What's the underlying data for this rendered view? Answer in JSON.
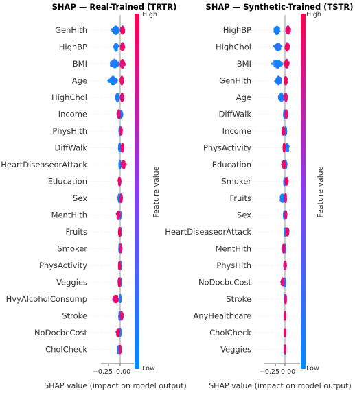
{
  "chart_data": [
    {
      "type": "beeswarm",
      "title": "SHAP — Real-Trained (TRTR)",
      "xlabel": "SHAP value (impact on model output)",
      "xticks": [
        -0.25,
        0.0
      ],
      "xtick_labels": [
        "−0.25",
        "0.00"
      ],
      "xlim": [
        -0.36,
        0.14
      ],
      "colorbar": {
        "label": "Feature value",
        "high": "High",
        "low": "Low"
      },
      "features": [
        {
          "name": "GenHlth",
          "low_range": [
            -0.18,
            -0.01
          ],
          "high_range": [
            0.0,
            0.1
          ]
        },
        {
          "name": "HighBP",
          "low_range": [
            -0.14,
            -0.03
          ],
          "high_range": [
            0.0,
            0.1
          ]
        },
        {
          "name": "BMI",
          "low_range": [
            -0.24,
            0.0
          ],
          "high_range": [
            -0.02,
            0.11
          ]
        },
        {
          "name": "Age",
          "low_range": [
            -0.27,
            -0.02
          ],
          "high_range": [
            0.0,
            0.07
          ]
        },
        {
          "name": "HighChol",
          "low_range": [
            -0.1,
            -0.02
          ],
          "high_range": [
            0.0,
            0.08
          ]
        },
        {
          "name": "Income",
          "low_range": [
            -0.01,
            0.05
          ],
          "high_range": [
            -0.06,
            0.0
          ]
        },
        {
          "name": "PhysHlth",
          "low_range": [
            -0.02,
            0.01
          ],
          "high_range": [
            0.0,
            0.04
          ]
        },
        {
          "name": "DiffWalk",
          "low_range": [
            -0.03,
            0.01
          ],
          "high_range": [
            0.02,
            0.07
          ]
        },
        {
          "name": "HeartDiseaseorAttack",
          "low_range": [
            -0.02,
            0.01
          ],
          "high_range": [
            0.01,
            0.13
          ]
        },
        {
          "name": "Education",
          "low_range": [
            -0.03,
            0.01
          ],
          "high_range": [
            -0.04,
            0.01
          ]
        },
        {
          "name": "Sex",
          "low_range": [
            -0.04,
            0.0
          ],
          "high_range": [
            0.0,
            0.04
          ]
        },
        {
          "name": "MentHlth",
          "low_range": [
            -0.01,
            0.01
          ],
          "high_range": [
            -0.08,
            0.0
          ]
        },
        {
          "name": "Fruits",
          "low_range": [
            -0.01,
            0.02
          ],
          "high_range": [
            -0.03,
            0.01
          ]
        },
        {
          "name": "Smoker",
          "low_range": [
            -0.02,
            0.0
          ],
          "high_range": [
            0.0,
            0.03
          ]
        },
        {
          "name": "PhysActivity",
          "low_range": [
            -0.01,
            0.02
          ],
          "high_range": [
            -0.03,
            0.0
          ]
        },
        {
          "name": "Veggies",
          "low_range": [
            0.0,
            0.01
          ],
          "high_range": [
            -0.04,
            0.0
          ]
        },
        {
          "name": "HvyAlcoholConsump",
          "low_range": [
            -0.01,
            0.01
          ],
          "high_range": [
            -0.17,
            -0.01
          ]
        },
        {
          "name": "Stroke",
          "low_range": [
            -0.02,
            0.0
          ],
          "high_range": [
            0.0,
            0.06
          ]
        },
        {
          "name": "NoDocbcCost",
          "low_range": [
            -0.01,
            0.01
          ],
          "high_range": [
            -0.08,
            -0.01
          ]
        },
        {
          "name": "CholCheck",
          "low_range": [
            -0.06,
            -0.01
          ],
          "high_range": [
            -0.01,
            0.01
          ]
        }
      ]
    },
    {
      "type": "beeswarm",
      "title": "SHAP — Synthetic-Trained (TSTR)",
      "xlabel": "SHAP value (impact on model output)",
      "xticks": [
        -0.25,
        0.0
      ],
      "xtick_labels": [
        "−0.25",
        "0.00"
      ],
      "xlim": [
        -0.55,
        0.2
      ],
      "colorbar": {
        "label": "Feature value",
        "high": "High",
        "low": "Low"
      },
      "features": [
        {
          "name": "HighBP",
          "low_range": [
            -0.3,
            -0.12
          ],
          "high_range": [
            0.02,
            0.14
          ]
        },
        {
          "name": "HighChol",
          "low_range": [
            -0.3,
            -0.07
          ],
          "high_range": [
            0.0,
            0.12
          ]
        },
        {
          "name": "BMI",
          "low_range": [
            -0.38,
            -0.01
          ],
          "high_range": [
            -0.03,
            0.12
          ]
        },
        {
          "name": "GenHlth",
          "low_range": [
            -0.28,
            -0.05
          ],
          "high_range": [
            -0.02,
            0.06
          ]
        },
        {
          "name": "Age",
          "low_range": [
            -0.18,
            -0.01
          ],
          "high_range": [
            -0.02,
            0.06
          ]
        },
        {
          "name": "DiffWalk",
          "low_range": [
            -0.03,
            0.01
          ],
          "high_range": [
            0.0,
            0.07
          ]
        },
        {
          "name": "Income",
          "low_range": [
            -0.01,
            0.04
          ],
          "high_range": [
            -0.08,
            0.0
          ]
        },
        {
          "name": "PhysActivity",
          "low_range": [
            0.0,
            0.12
          ],
          "high_range": [
            -0.04,
            0.0
          ]
        },
        {
          "name": "Education",
          "low_range": [
            -0.02,
            0.05
          ],
          "high_range": [
            -0.08,
            0.02
          ]
        },
        {
          "name": "Smoker",
          "low_range": [
            -0.02,
            0.0
          ],
          "high_range": [
            0.0,
            0.08
          ]
        },
        {
          "name": "Fruits",
          "low_range": [
            -0.14,
            0.0
          ],
          "high_range": [
            0.0,
            0.03
          ]
        },
        {
          "name": "Sex",
          "low_range": [
            -0.03,
            0.0
          ],
          "high_range": [
            0.0,
            0.04
          ]
        },
        {
          "name": "HeartDiseaseorAttack",
          "low_range": [
            -0.01,
            0.01
          ],
          "high_range": [
            0.02,
            0.1
          ]
        },
        {
          "name": "MentHlth",
          "low_range": [
            -0.01,
            0.01
          ],
          "high_range": [
            -0.07,
            0.0
          ]
        },
        {
          "name": "PhysHlth",
          "low_range": [
            -0.02,
            0.01
          ],
          "high_range": [
            -0.02,
            0.03
          ]
        },
        {
          "name": "NoDocbcCost",
          "low_range": [
            -0.01,
            0.01
          ],
          "high_range": [
            -0.1,
            -0.02
          ]
        },
        {
          "name": "Stroke",
          "low_range": [
            -0.01,
            0.0
          ],
          "high_range": [
            0.0,
            0.03
          ]
        },
        {
          "name": "AnyHealthcare",
          "low_range": [
            -0.01,
            0.0
          ],
          "high_range": [
            -0.01,
            0.01
          ]
        },
        {
          "name": "CholCheck",
          "low_range": [
            -0.01,
            0.0
          ],
          "high_range": [
            -0.01,
            0.01
          ]
        },
        {
          "name": "Veggies",
          "low_range": [
            -0.01,
            0.01
          ],
          "high_range": [
            -0.01,
            0.01
          ]
        }
      ]
    }
  ]
}
